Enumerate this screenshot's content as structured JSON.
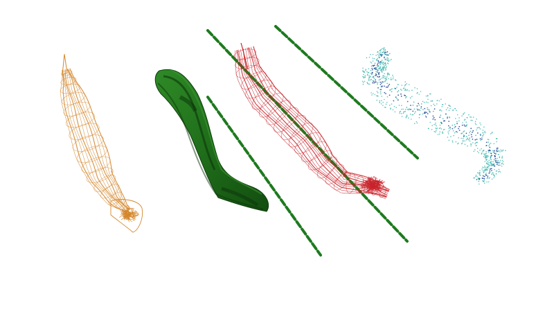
{
  "scene": {
    "background": "#ffffff",
    "objects": [
      {
        "name": "orange-wireframe-tube",
        "render_style": "wireframe",
        "color": "#d4862b"
      },
      {
        "name": "green-solid-ribbon",
        "render_style": "solid-surface",
        "color": "#1f6e1a"
      },
      {
        "name": "green-dashed-axis-left",
        "render_style": "dashed-line",
        "color": "#1e7a1e"
      },
      {
        "name": "red-wireframe-tube",
        "render_style": "wireframe",
        "color": "#c8242c"
      },
      {
        "name": "green-dashed-axis-middle",
        "render_style": "dashed-line",
        "color": "#1e7a1e"
      },
      {
        "name": "green-dashed-axis-right",
        "render_style": "dashed-line",
        "color": "#1e7a1e"
      },
      {
        "name": "teal-point-cloud",
        "render_style": "point-cloud",
        "color": "#3fb7b0",
        "accent_color": "#1d3f8f"
      }
    ]
  }
}
